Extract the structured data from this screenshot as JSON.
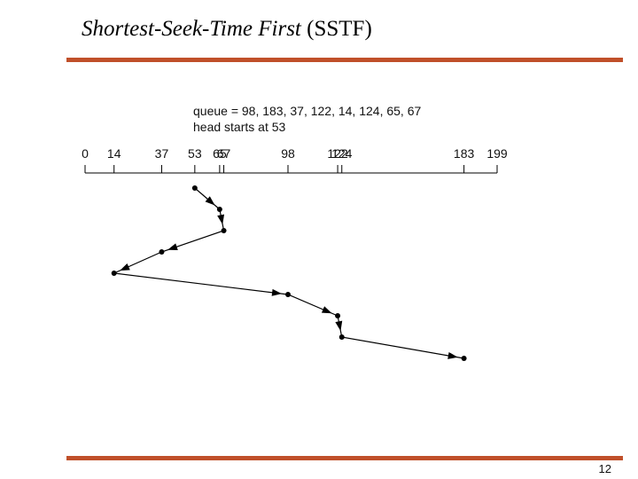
{
  "slide": {
    "title_italic": "Shortest-Seek-Time First",
    "title_rest": "(SSTF)",
    "page_number": "12"
  },
  "chart_data": {
    "type": "line",
    "annotations": [
      "queue = 98, 183, 37, 122, 14, 124, 65, 67",
      "head starts at 53"
    ],
    "x": [
      53,
      65,
      67,
      37,
      14,
      98,
      122,
      124,
      183
    ],
    "values": [
      1,
      2,
      3,
      4,
      5,
      6,
      7,
      8,
      9
    ],
    "ylim": [
      1,
      9
    ],
    "y_inverted": true,
    "xlim": [
      0,
      199
    ],
    "xticks": [
      0,
      14,
      37,
      53,
      65,
      67,
      98,
      122,
      124,
      183,
      199
    ],
    "color": "#000000"
  }
}
